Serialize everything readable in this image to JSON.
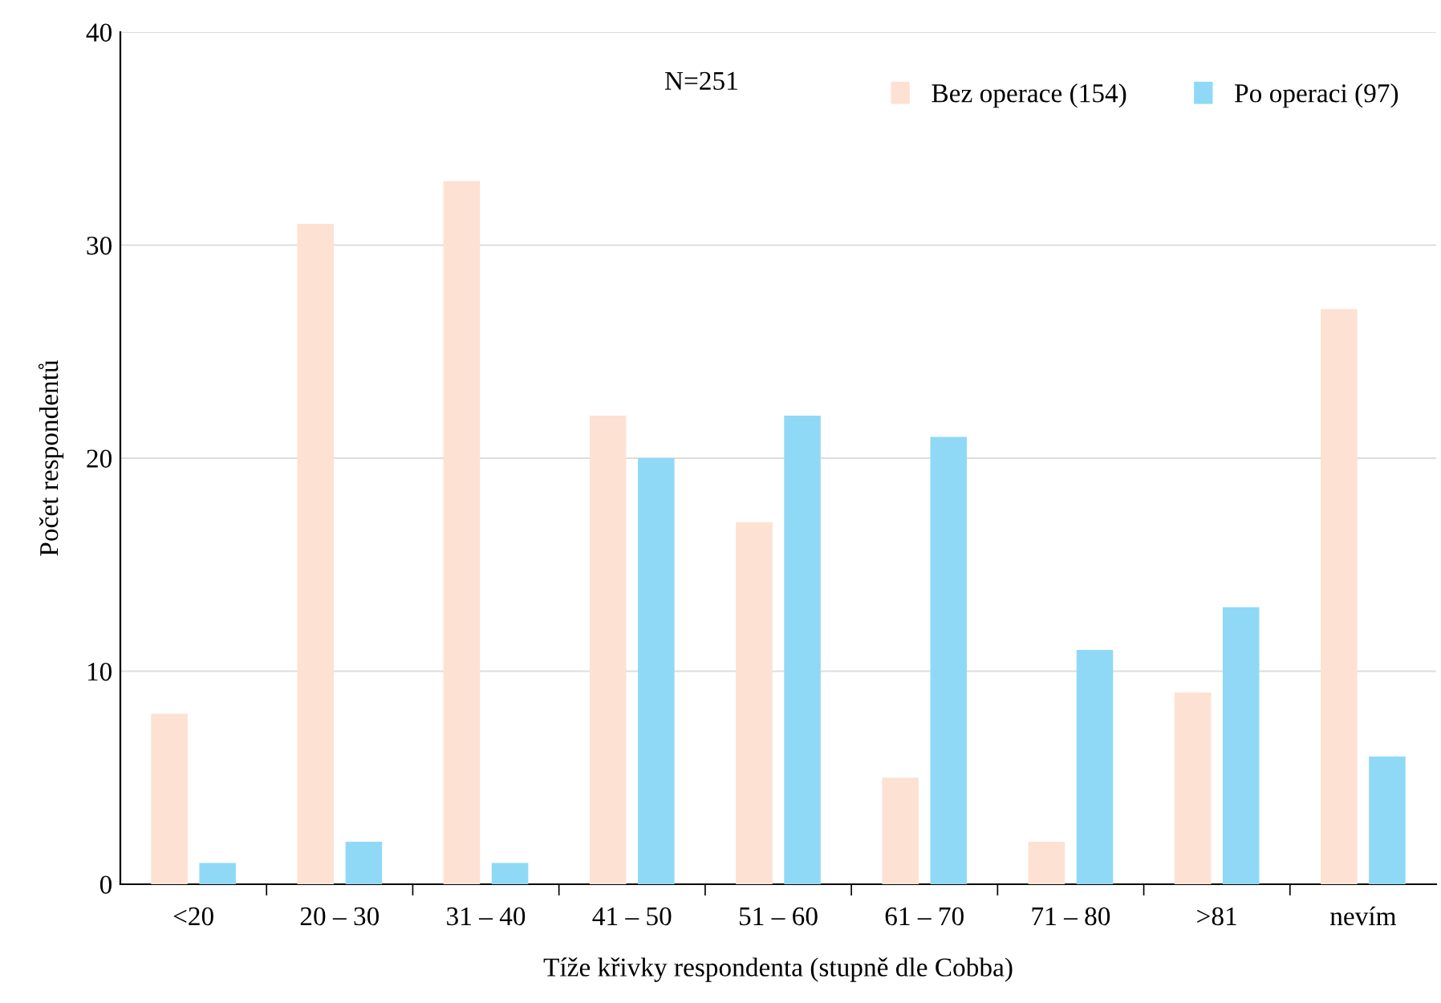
{
  "chart_data": {
    "type": "bar",
    "xlabel": "Tíže křivky respondenta (stupně dle Cobba)",
    "ylabel": "Počet respondentů",
    "categories": [
      "<20",
      "20 – 30",
      "31 – 40",
      "41 – 50",
      "51 – 60",
      "61 – 70",
      "71 – 80",
      ">81",
      "nevím"
    ],
    "series": [
      {
        "name": "Bez operace (154)",
        "color": "#fde1d2",
        "values": [
          8,
          31,
          33,
          22,
          17,
          5,
          2,
          9,
          27
        ]
      },
      {
        "name": "Po operaci (97)",
        "color": "#8fd9f6",
        "values": [
          1,
          2,
          1,
          20,
          22,
          21,
          11,
          13,
          6
        ]
      }
    ],
    "ylim": [
      0,
      40
    ],
    "yticks": [
      0,
      10,
      20,
      30,
      40
    ],
    "grid": "y",
    "legend": "top right",
    "annotations": [
      "N=251"
    ]
  }
}
